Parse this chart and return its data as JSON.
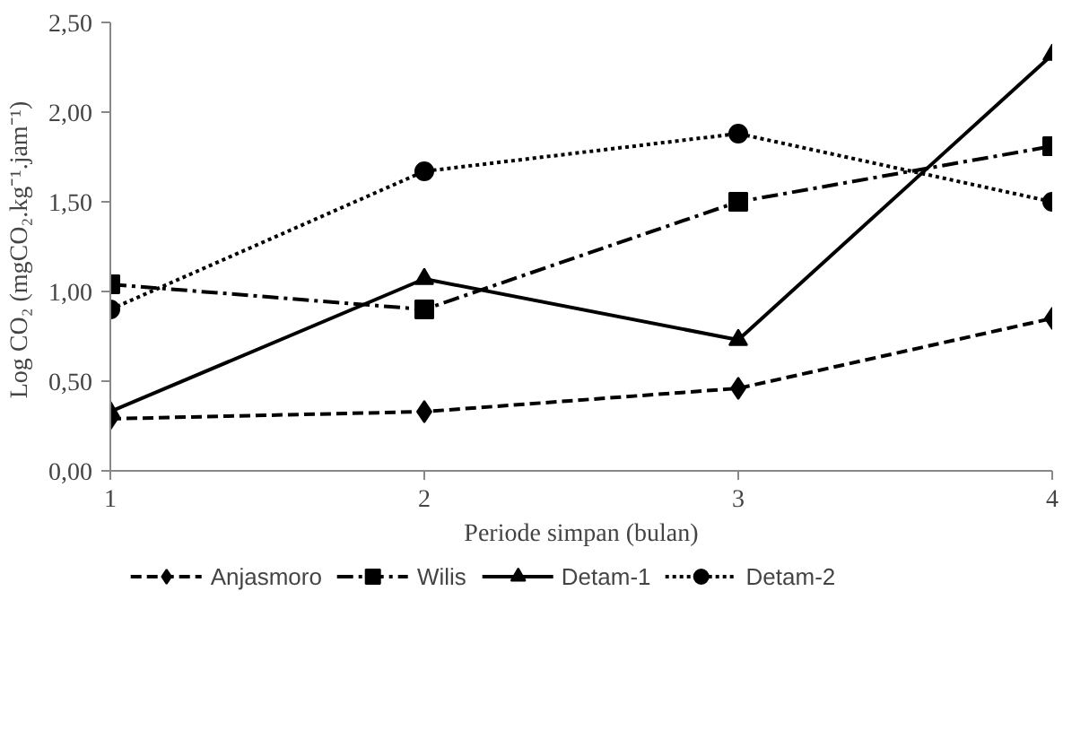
{
  "chart_data": {
    "type": "line",
    "xlabel": "Periode simpan (bulan)",
    "ylabel": "Log CO₂  (mgCO₂.kg⁻¹.jam⁻¹)",
    "x": [
      1,
      2,
      3,
      4
    ],
    "xlim": [
      1,
      4
    ],
    "xticks": [
      1,
      2,
      3,
      4
    ],
    "ylim": [
      0,
      2.5
    ],
    "yticks": [
      {
        "value": 0,
        "label": "0,00"
      },
      {
        "value": 0.5,
        "label": "0,50"
      },
      {
        "value": 1,
        "label": "1,00"
      },
      {
        "value": 1.5,
        "label": "1,50"
      },
      {
        "value": 2,
        "label": "2,00"
      },
      {
        "value": 2.5,
        "label": "2,50"
      }
    ],
    "grid": false,
    "legend": "bottom",
    "series": [
      {
        "name": "Anjasmoro",
        "color": "#000000",
        "values": [
          0.29,
          0.33,
          0.46,
          0.85
        ],
        "marker": "diamond",
        "line_style": "dashed"
      },
      {
        "name": "Wilis",
        "color": "#000000",
        "values": [
          1.04,
          0.9,
          1.5,
          1.81
        ],
        "marker": "square",
        "line_style": "dashdot"
      },
      {
        "name": "Detam-1",
        "color": "#000000",
        "values": [
          0.33,
          1.07,
          0.73,
          2.32
        ],
        "marker": "triangle",
        "line_style": "solid"
      },
      {
        "name": "Detam-2",
        "color": "#000000",
        "values": [
          0.9,
          1.67,
          1.88,
          1.5
        ],
        "marker": "circle",
        "line_style": "dotted"
      }
    ]
  }
}
